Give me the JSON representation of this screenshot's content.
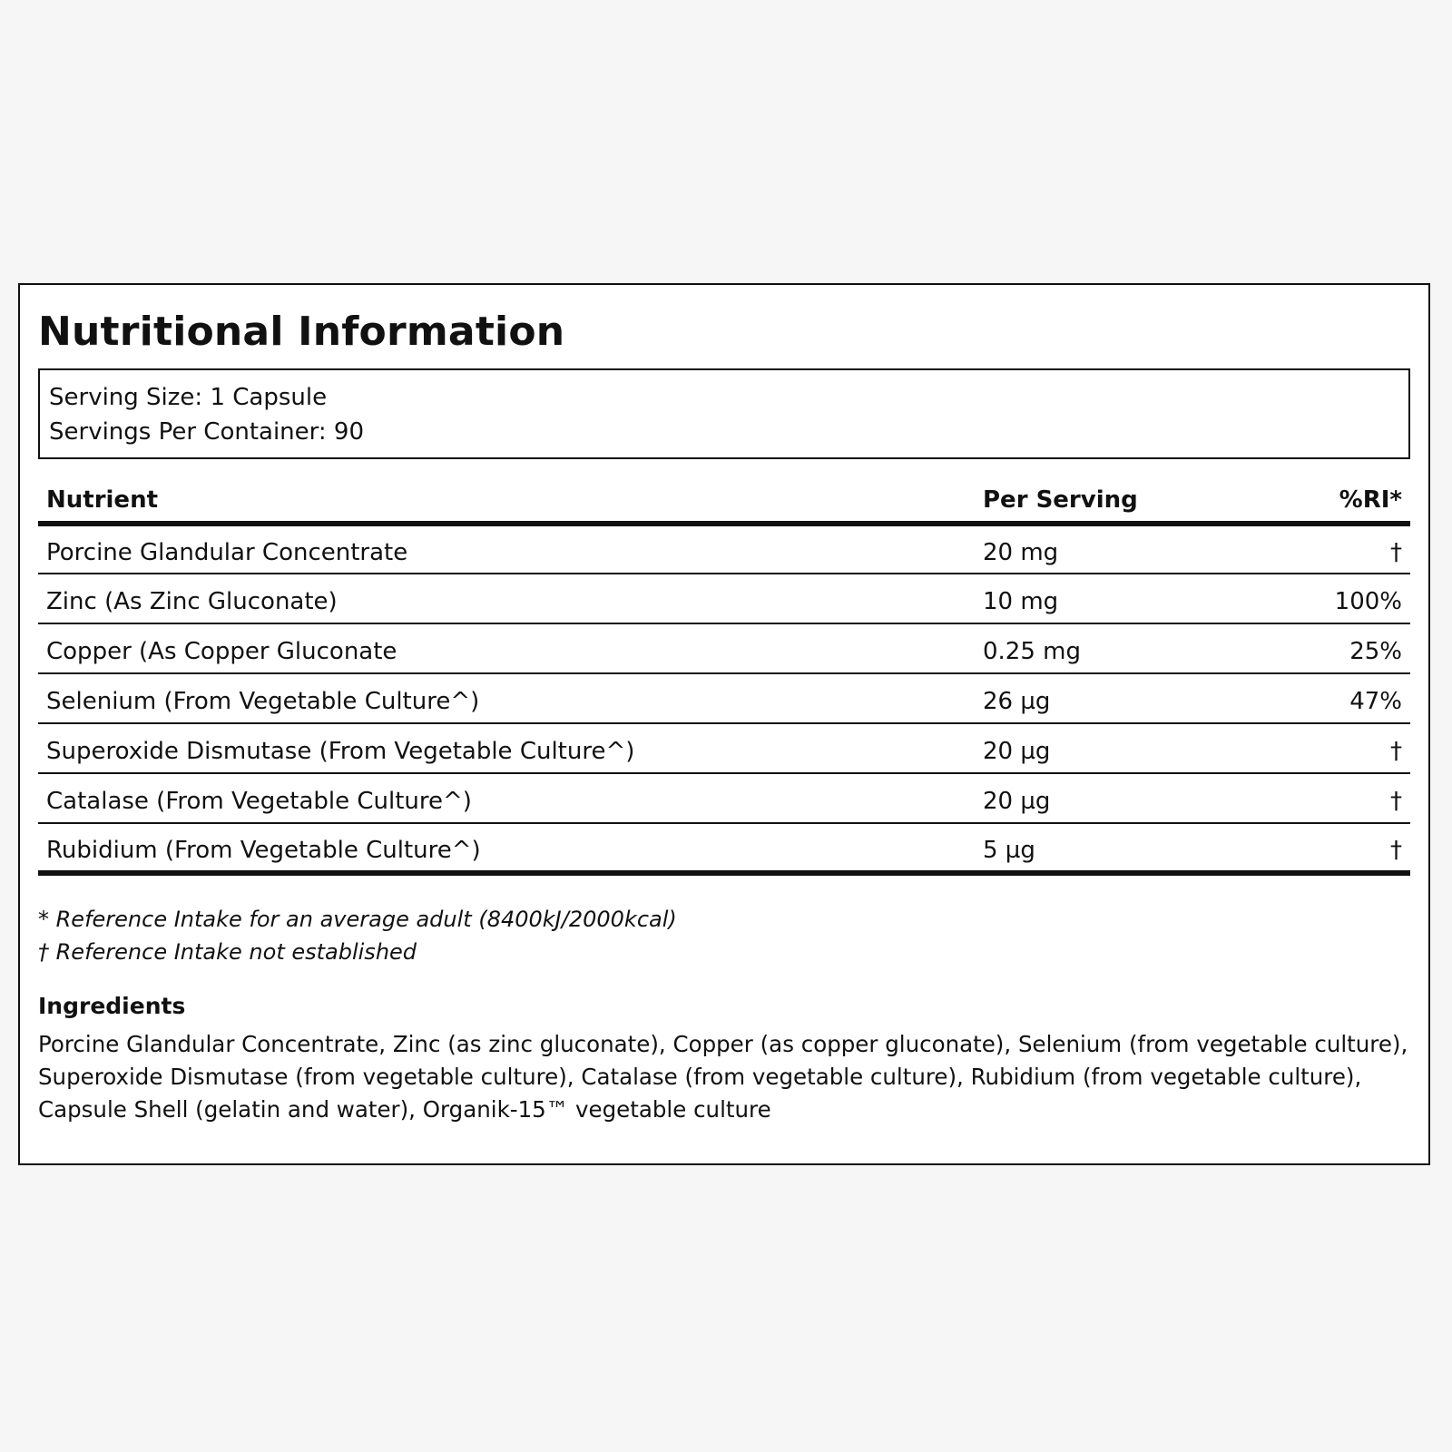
{
  "panel": {
    "title": "Nutritional Information",
    "serving_size": "Serving Size: 1 Capsule",
    "servings_per_container": "Servings Per Container: 90"
  },
  "table": {
    "headers": {
      "nutrient": "Nutrient",
      "per_serving": "Per Serving",
      "ri": "%RI*"
    },
    "rows": [
      {
        "nutrient": "Porcine Glandular Concentrate",
        "per_serving": "20 mg",
        "ri": "†"
      },
      {
        "nutrient": "Zinc (As Zinc Gluconate)",
        "per_serving": "10 mg",
        "ri": "100%"
      },
      {
        "nutrient": "Copper (As Copper Gluconate",
        "per_serving": "0.25 mg",
        "ri": "25%"
      },
      {
        "nutrient": "Selenium (From Vegetable Culture^)",
        "per_serving": "26 µg",
        "ri": "47%"
      },
      {
        "nutrient": "Superoxide Dismutase (From Vegetable Culture^)",
        "per_serving": "20 µg",
        "ri": "†"
      },
      {
        "nutrient": "Catalase (From Vegetable Culture^)",
        "per_serving": "20 µg",
        "ri": "†"
      },
      {
        "nutrient": "Rubidium (From Vegetable Culture^)",
        "per_serving": "5 µg",
        "ri": "†"
      }
    ]
  },
  "footnotes": {
    "ri_note": "* Reference Intake for an average adult (8400kJ/2000kcal)",
    "dagger_note": "† Reference Intake not established"
  },
  "ingredients": {
    "heading": "Ingredients",
    "text": "Porcine Glandular Concentrate, Zinc (as zinc gluconate), Copper (as copper gluconate), Selenium (from vegetable culture), Superoxide Dismutase (from vegetable culture), Catalase (from vegetable culture), Rubidium (from vegetable culture), Capsule Shell (gelatin and water), Organik-15™ vegetable culture"
  }
}
